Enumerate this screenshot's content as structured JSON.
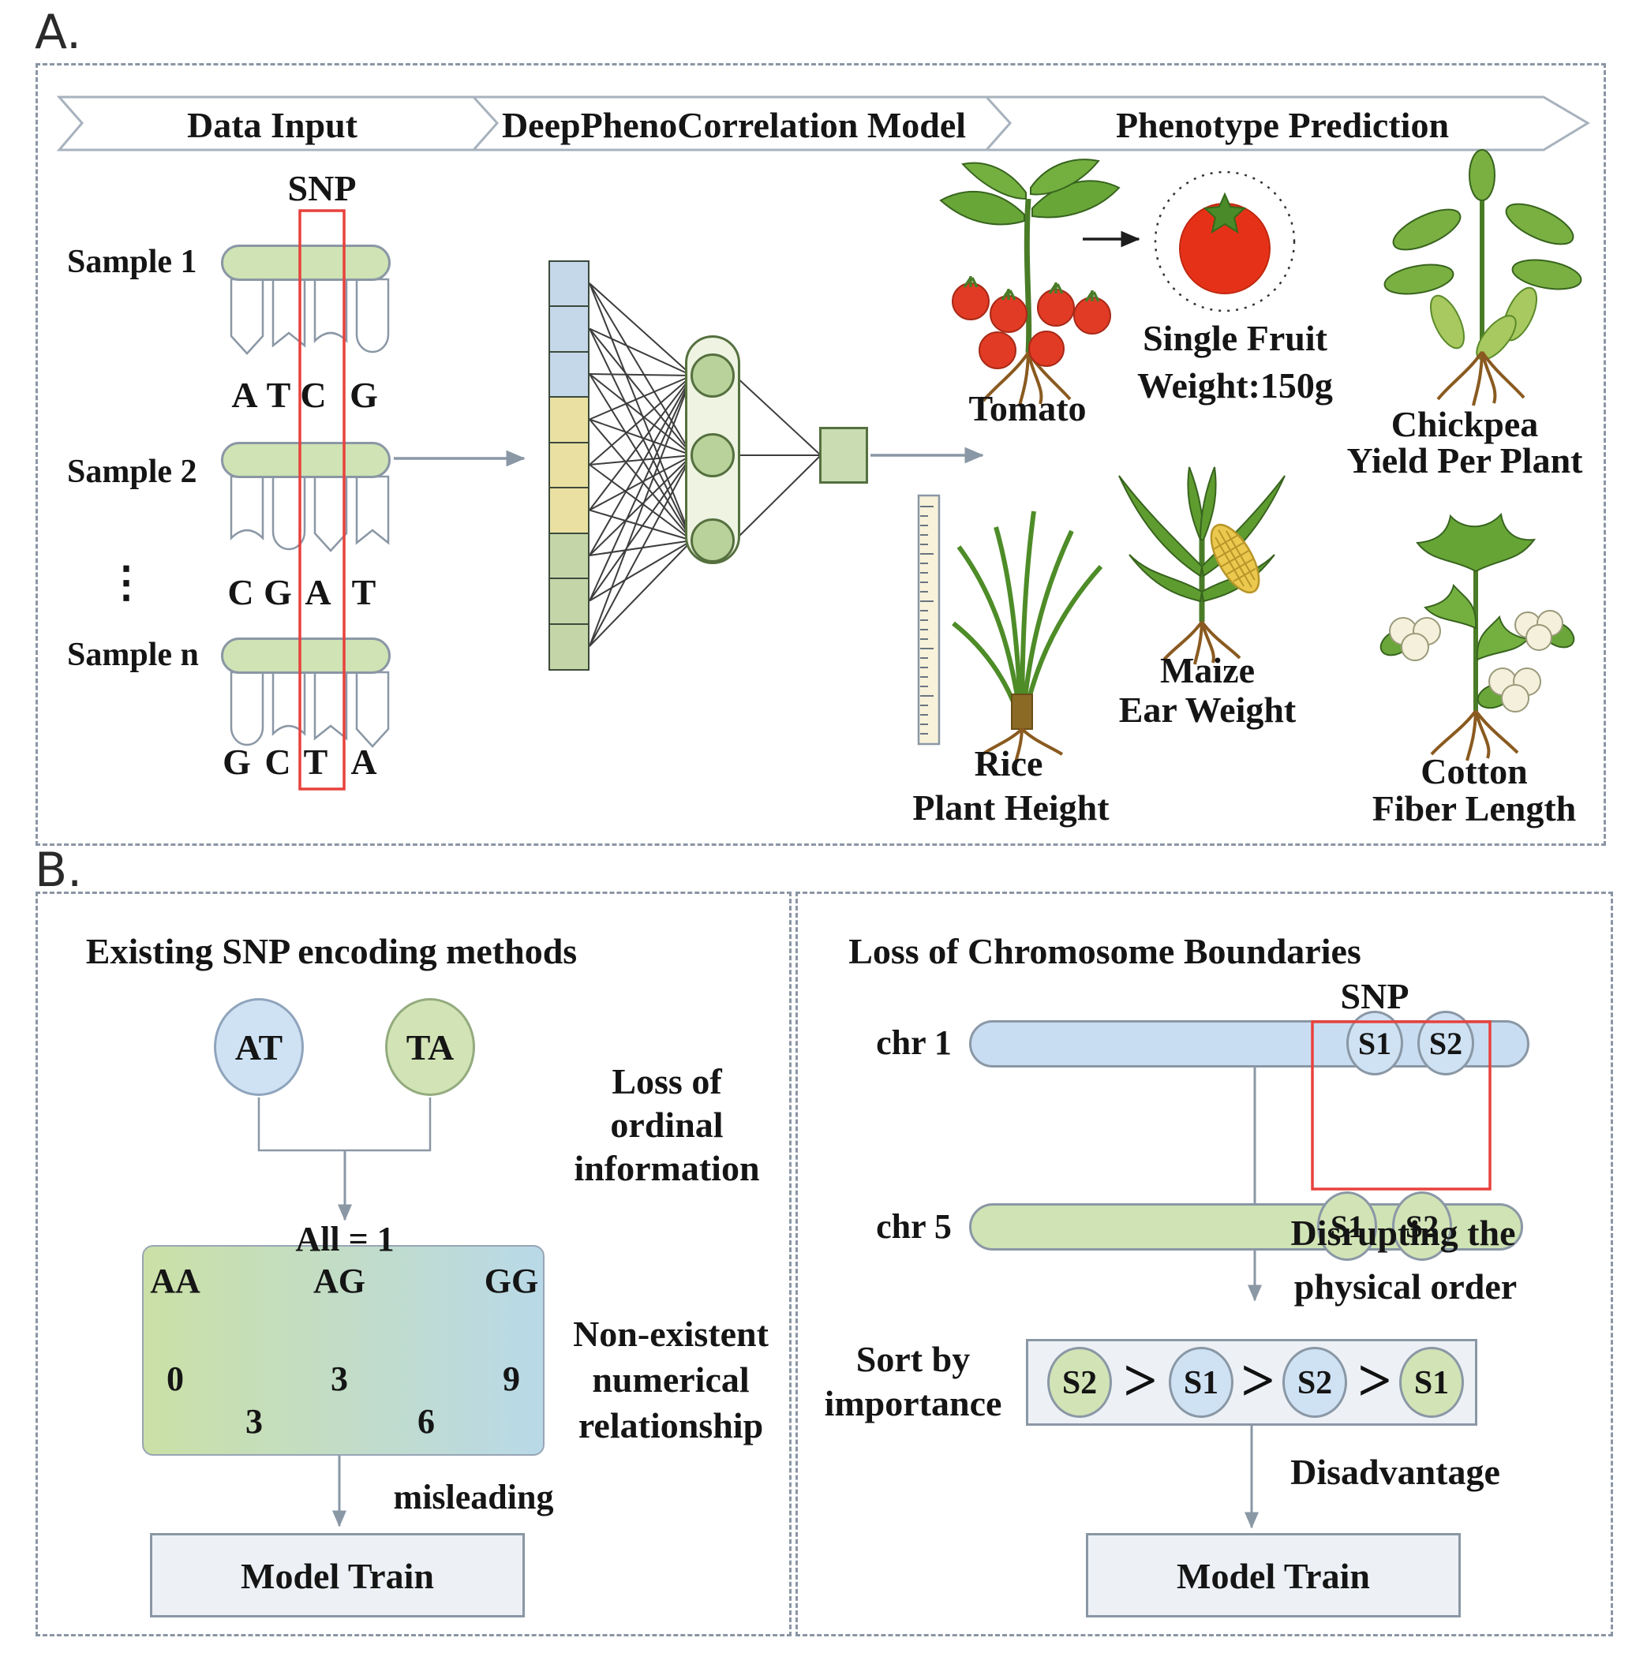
{
  "figure": {
    "panel_a_label": "A.",
    "panel_b_label": "B."
  },
  "banner": {
    "steps": [
      "Data Input",
      "DeepPhenoCorrelation Model",
      "Phenotype Prediction"
    ]
  },
  "data_input": {
    "snp_label": "SNP",
    "ellipsis": "⋮",
    "samples": [
      {
        "label": "Sample 1",
        "bases": [
          "A",
          "T",
          "C",
          "G"
        ]
      },
      {
        "label": "Sample 2",
        "bases": [
          "C",
          "G",
          "A",
          "T"
        ]
      },
      {
        "label": "Sample n",
        "bases": [
          "G",
          "C",
          "T",
          "A"
        ]
      }
    ]
  },
  "phenotypes": {
    "tomato_label": "Tomato",
    "tomato_annotation_line1": "Single Fruit",
    "tomato_annotation_line2": "Weight:150g",
    "chickpea_line1": "Chickpea",
    "chickpea_line2": "Yield Per Plant",
    "rice_line1": "Rice",
    "rice_line2": "Plant Height",
    "maize_line1": "Maize",
    "maize_line2": "Ear Weight",
    "cotton_line1": "Cotton",
    "cotton_line2": "Fiber Length"
  },
  "encoding_panel": {
    "title": "Existing SNP encoding methods",
    "allele_left": "AT",
    "allele_right": "TA",
    "all_equals": "All = 1",
    "loss_lines": [
      "Loss of",
      "ordinal",
      "information"
    ],
    "genotypes": [
      "AA",
      "AG",
      "GG"
    ],
    "codes": [
      "0",
      "3",
      "9"
    ],
    "averages": [
      "3",
      "6"
    ],
    "nonexistent_lines": [
      "Non-existent",
      "numerical",
      "relationship"
    ],
    "misleading": "misleading",
    "model_train": "Model Train"
  },
  "boundary_panel": {
    "title": "Loss of Chromosome Boundaries",
    "snp_label": "SNP",
    "chr1_label": "chr 1",
    "chr5_label": "chr 5",
    "chr1_snps": [
      "S1",
      "S2"
    ],
    "chr5_snps": [
      "S1",
      "S2"
    ],
    "disrupt_line1": "Disrupting the",
    "disrupt_line2": "physical order",
    "sort_line1": "Sort by",
    "sort_line2": "importance",
    "sorted": [
      {
        "label": "S2",
        "origin": "chr5-green"
      },
      {
        "label": "S1",
        "origin": "chr1-blue"
      },
      {
        "label": "S2",
        "origin": "chr1-blue"
      },
      {
        "label": "S1",
        "origin": "chr5-green"
      }
    ],
    "gt": ">",
    "disadvantage": "Disadvantage",
    "model_train": "Model Train"
  },
  "colors": {
    "snp_highlight_red": "#e8413c",
    "sample_green": "#cfe3b4",
    "chromosome_blue": "#c9ddf2",
    "input_blue": "#c5d8ea",
    "input_yellow": "#e9e0a2",
    "input_green": "#c4d6a8",
    "node_green": "#b9d29b",
    "box_gray": "#edf1f6",
    "arrow_gray": "#8a97a5"
  }
}
